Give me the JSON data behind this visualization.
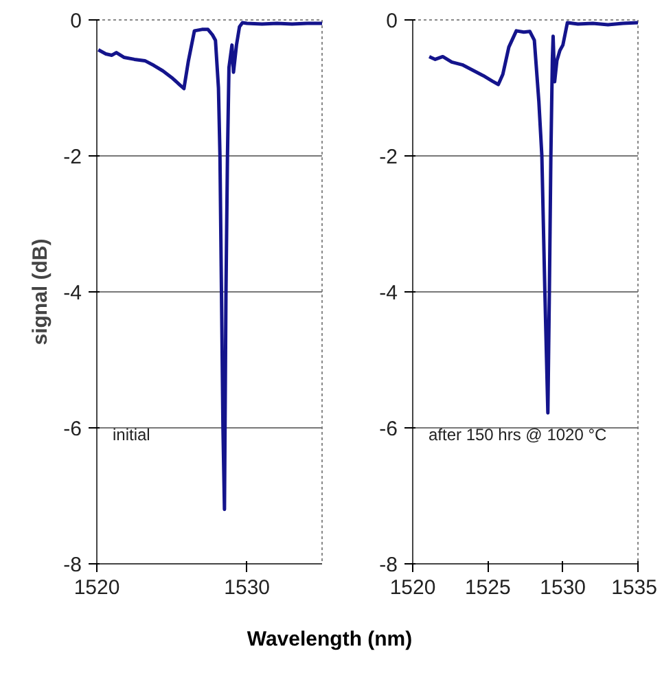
{
  "chart_data": [
    {
      "type": "line",
      "ylabel": "signal (dB)",
      "xlabel": "Wavelength (nm)",
      "xlim": [
        1520,
        1535
      ],
      "ylim": [
        -8,
        0
      ],
      "xticks": [
        1520,
        1530
      ],
      "yticks": [
        -8,
        -6,
        -4,
        -2,
        0
      ],
      "grid": "y",
      "annotations": [
        "initial"
      ],
      "series": [
        {
          "color": "#14148c",
          "x": [
            1520.1,
            1520.6,
            1521.0,
            1521.3,
            1521.8,
            1522.5,
            1523.2,
            1523.8,
            1524.4,
            1525.0,
            1525.5,
            1525.8,
            1526.1,
            1526.5,
            1527.0,
            1527.4,
            1527.7,
            1527.9,
            1528.1,
            1528.2,
            1528.3,
            1528.4,
            1528.5,
            1528.6,
            1528.7,
            1528.8,
            1529.0,
            1529.1,
            1529.3,
            1529.5,
            1529.7,
            1530.0,
            1531.0,
            1532.0,
            1533.0,
            1534.0,
            1535.0
          ],
          "values": [
            -0.44,
            -0.5,
            -0.52,
            -0.48,
            -0.55,
            -0.58,
            -0.6,
            -0.67,
            -0.75,
            -0.85,
            -0.95,
            -1.01,
            -0.6,
            -0.16,
            -0.14,
            -0.14,
            -0.22,
            -0.3,
            -1.0,
            -2.0,
            -4.0,
            -6.0,
            -7.2,
            -4.0,
            -2.0,
            -0.7,
            -0.37,
            -0.77,
            -0.37,
            -0.1,
            -0.04,
            -0.05,
            -0.06,
            -0.05,
            -0.06,
            -0.05,
            -0.05
          ]
        }
      ]
    },
    {
      "type": "line",
      "xlim": [
        1520,
        1535
      ],
      "ylim": [
        -8,
        0
      ],
      "xticks": [
        1520,
        1525,
        1530,
        1535
      ],
      "yticks": [
        -8,
        -6,
        -4,
        -2,
        0
      ],
      "grid": "y",
      "annotations": [
        "after 150 hrs @ 1020 °C"
      ],
      "series": [
        {
          "color": "#14148c",
          "x": [
            1521.1,
            1521.5,
            1522.0,
            1522.6,
            1523.3,
            1524.0,
            1524.7,
            1525.3,
            1525.7,
            1526.0,
            1526.4,
            1526.9,
            1527.4,
            1527.8,
            1528.1,
            1528.4,
            1528.6,
            1528.8,
            1529.0,
            1529.1,
            1529.2,
            1529.3,
            1529.35,
            1529.45,
            1529.6,
            1529.8,
            1530.0,
            1530.3,
            1531.0,
            1532.0,
            1533.0,
            1534.0,
            1535.0
          ],
          "values": [
            -0.54,
            -0.58,
            -0.54,
            -0.62,
            -0.66,
            -0.74,
            -0.82,
            -0.9,
            -0.95,
            -0.8,
            -0.4,
            -0.16,
            -0.18,
            -0.17,
            -0.3,
            -1.2,
            -2.0,
            -4.0,
            -5.78,
            -4.0,
            -2.0,
            -0.57,
            -0.24,
            -0.91,
            -0.6,
            -0.45,
            -0.37,
            -0.04,
            -0.06,
            -0.05,
            -0.07,
            -0.05,
            -0.04
          ]
        }
      ]
    }
  ]
}
